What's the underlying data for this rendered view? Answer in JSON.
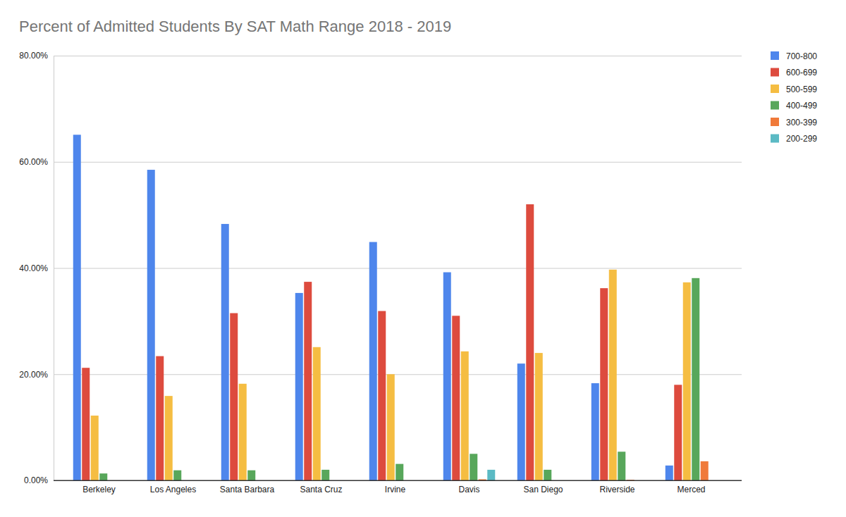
{
  "chart_data": {
    "type": "bar",
    "title": "Percent of Admitted Students By SAT Math Range 2018 - 2019",
    "categories": [
      "Berkeley",
      "Los Angeles",
      "Santa Barbara",
      "Santa Cruz",
      "Irvine",
      "Davis",
      "San Diego",
      "Riverside",
      "Merced"
    ],
    "series": [
      {
        "name": "700-800",
        "color": "#4e86ec",
        "values": [
          65.1,
          58.5,
          48.3,
          35.3,
          44.9,
          39.2,
          22.0,
          18.3,
          2.8
        ]
      },
      {
        "name": "600-699",
        "color": "#dd4b3e",
        "values": [
          21.2,
          23.4,
          31.5,
          37.4,
          31.9,
          31.0,
          52.0,
          36.2,
          18.0
        ]
      },
      {
        "name": "500-599",
        "color": "#f5bd42",
        "values": [
          12.2,
          15.9,
          18.2,
          25.1,
          20.0,
          24.3,
          24.0,
          39.7,
          37.3
        ]
      },
      {
        "name": "400-499",
        "color": "#58a75b",
        "values": [
          1.3,
          1.9,
          1.9,
          2.0,
          3.1,
          5.0,
          2.0,
          5.4,
          38.1
        ]
      },
      {
        "name": "300-399",
        "color": "#f07a3a",
        "values": [
          0,
          0,
          0,
          0,
          0,
          0.2,
          0,
          0.1,
          3.6
        ]
      },
      {
        "name": "200-299",
        "color": "#5bbac4",
        "values": [
          0,
          0,
          0,
          0,
          0,
          2.0,
          0,
          0,
          0
        ]
      }
    ],
    "ylim": [
      0,
      80
    ],
    "yticks": [
      {
        "value": 0,
        "label": "0.00%"
      },
      {
        "value": 20,
        "label": "20.00%"
      },
      {
        "value": 40,
        "label": "40.00%"
      },
      {
        "value": 60,
        "label": "60.00%"
      },
      {
        "value": 80,
        "label": "80.00%"
      }
    ],
    "grid": true,
    "legend": "right"
  }
}
